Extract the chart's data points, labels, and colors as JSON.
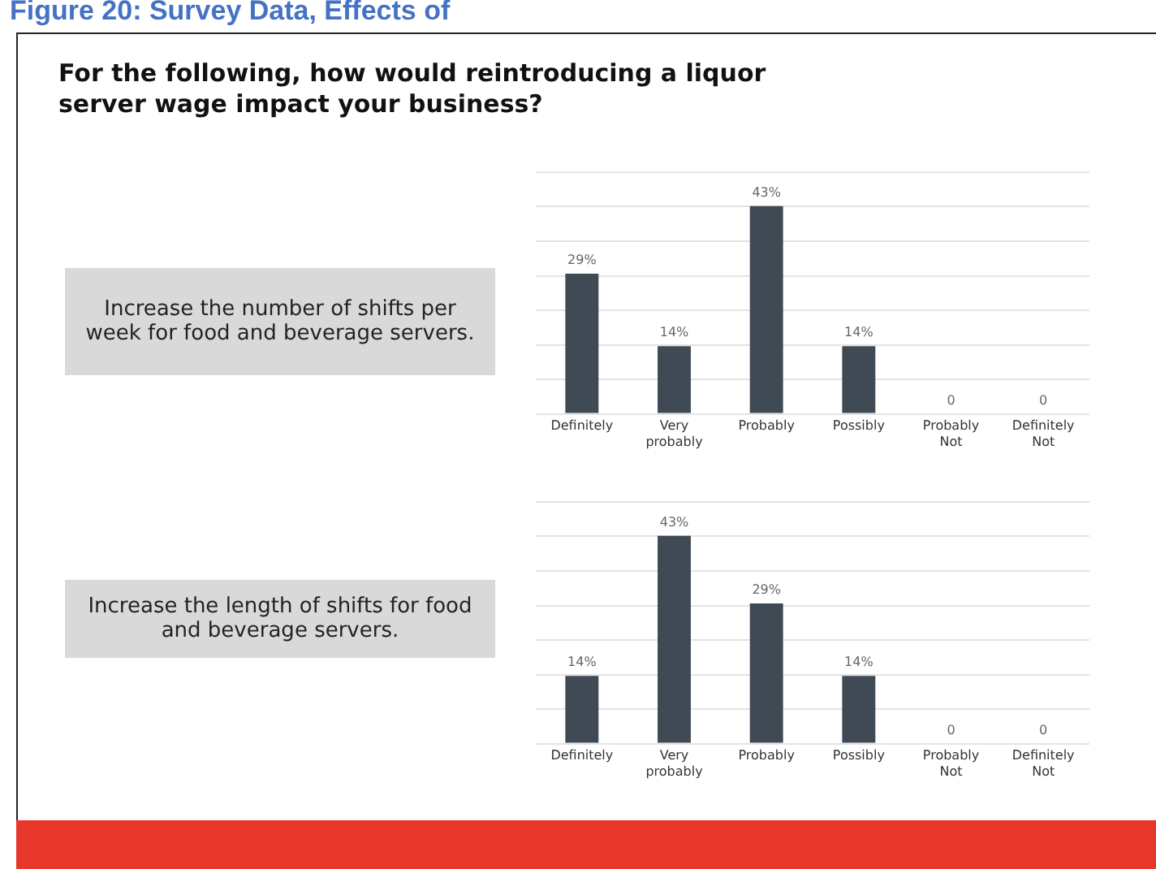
{
  "chart_data": [
    {
      "type": "bar",
      "title": "Figure 20: Survey Data, Effects of",
      "subtitle": "For the following, how would reintroducing a liquor server wage impact your business?",
      "annotations": [
        "Increase the number of shifts per week for food and beverage servers."
      ],
      "categories": [
        "Definitely",
        "Very probably",
        "Probably",
        "Possibly",
        "Probably Not",
        "Definitely Not"
      ],
      "values": [
        29,
        14,
        43,
        14,
        0,
        0
      ],
      "value_labels": [
        "29%",
        "14%",
        "43%",
        "14%",
        "0",
        "0"
      ],
      "color": "#3f4a55",
      "ylim": [
        0,
        50
      ],
      "yticks": [
        {
          "value": 0,
          "label": null
        },
        {
          "value": 7.14,
          "label": null
        },
        {
          "value": 14.29,
          "label": null
        },
        {
          "value": 21.43,
          "label": null
        },
        {
          "value": 28.57,
          "label": null
        },
        {
          "value": 35.71,
          "label": null
        },
        {
          "value": 42.86,
          "label": null
        },
        {
          "value": 50,
          "label": null
        }
      ],
      "grid": "y",
      "tick_labels": "x"
    },
    {
      "type": "bar",
      "annotations": [
        "Increase the length of shifts for food and beverage servers."
      ],
      "categories": [
        "Definitely",
        "Very probably",
        "Probably",
        "Possibly",
        "Probably Not",
        "Definitely Not"
      ],
      "values": [
        14,
        43,
        29,
        14,
        0,
        0
      ],
      "value_labels": [
        "14%",
        "43%",
        "29%",
        "14%",
        "0",
        "0"
      ],
      "color": "#3f4a55",
      "ylim": [
        0,
        50
      ],
      "yticks": [
        {
          "value": 0,
          "label": null
        },
        {
          "value": 7.14,
          "label": null
        },
        {
          "value": 14.29,
          "label": null
        },
        {
          "value": 21.43,
          "label": null
        },
        {
          "value": 28.57,
          "label": null
        },
        {
          "value": 35.71,
          "label": null
        },
        {
          "value": 42.86,
          "label": null
        },
        {
          "value": 50,
          "label": null
        }
      ],
      "grid": "y",
      "tick_labels": "x"
    }
  ]
}
